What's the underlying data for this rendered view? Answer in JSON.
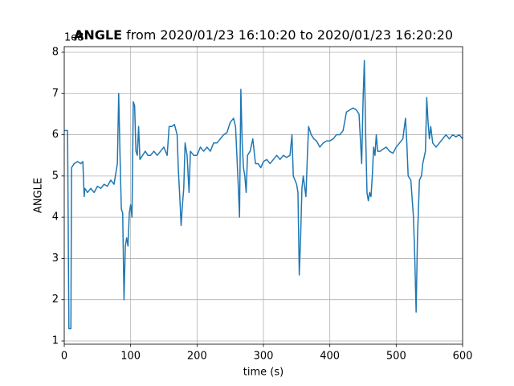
{
  "chart_data": {
    "type": "line",
    "title": {
      "bold": "ANGLE",
      "text": "from 2020/01/23 16:10:20 to 2020/01/23 16:20:20"
    },
    "y_offset_label": "1e8",
    "xlabel": "time (s)",
    "ylabel": "ANGLE",
    "xlim": [
      0,
      600
    ],
    "xticks": [
      0,
      100,
      200,
      300,
      400,
      500,
      600
    ],
    "ylim": [
      0.922,
      8.136
    ],
    "yticks": [
      1,
      2,
      3,
      4,
      5,
      6,
      7,
      8
    ],
    "grid": true,
    "x": [
      0,
      5,
      7,
      10,
      11,
      15,
      20,
      25,
      28,
      30,
      31,
      35,
      40,
      45,
      50,
      55,
      60,
      65,
      70,
      75,
      80,
      82,
      84,
      86,
      88,
      90,
      92,
      94,
      96,
      98,
      100,
      102,
      104,
      106,
      108,
      110,
      112,
      114,
      118,
      122,
      126,
      130,
      135,
      140,
      145,
      150,
      155,
      158,
      162,
      166,
      170,
      172,
      174,
      176,
      178,
      180,
      182,
      185,
      188,
      190,
      195,
      200,
      205,
      210,
      215,
      220,
      225,
      230,
      235,
      240,
      245,
      250,
      255,
      258,
      262,
      264,
      266,
      268,
      270,
      272,
      274,
      276,
      280,
      284,
      288,
      292,
      296,
      300,
      305,
      310,
      315,
      320,
      325,
      330,
      335,
      340,
      343,
      345,
      350,
      352,
      354,
      356,
      358,
      360,
      364,
      366,
      368,
      372,
      376,
      380,
      385,
      390,
      395,
      400,
      405,
      410,
      415,
      420,
      425,
      430,
      435,
      440,
      444,
      446,
      448,
      450,
      452,
      454,
      456,
      458,
      460,
      462,
      464,
      466,
      468,
      470,
      472,
      476,
      480,
      485,
      490,
      495,
      500,
      505,
      510,
      514,
      516,
      518,
      522,
      526,
      528,
      530,
      532,
      535,
      538,
      540,
      544,
      546,
      548,
      550,
      552,
      555,
      560,
      565,
      570,
      575,
      580,
      585,
      590,
      595,
      600
    ],
    "series": [
      {
        "name": "ANGLE",
        "color": "#1f77b4",
        "values": [
          6.1,
          6.1,
          1.3,
          1.3,
          5.2,
          5.3,
          5.35,
          5.3,
          5.35,
          4.5,
          4.7,
          4.6,
          4.7,
          4.6,
          4.75,
          4.7,
          4.8,
          4.75,
          4.9,
          4.8,
          5.3,
          7.0,
          5.5,
          4.2,
          4.1,
          2.0,
          3.3,
          3.5,
          3.3,
          4.1,
          4.3,
          4.0,
          6.8,
          6.7,
          5.6,
          5.5,
          6.2,
          5.4,
          5.5,
          5.6,
          5.5,
          5.5,
          5.6,
          5.5,
          5.6,
          5.7,
          5.5,
          6.2,
          6.2,
          6.25,
          6.0,
          5.1,
          4.5,
          3.8,
          4.3,
          4.7,
          5.8,
          5.5,
          4.6,
          5.6,
          5.5,
          5.5,
          5.7,
          5.6,
          5.7,
          5.6,
          5.8,
          5.8,
          5.9,
          6.0,
          6.05,
          6.3,
          6.4,
          6.2,
          4.8,
          4.0,
          7.1,
          5.8,
          5.2,
          5.0,
          4.6,
          5.5,
          5.6,
          5.9,
          5.3,
          5.3,
          5.2,
          5.35,
          5.4,
          5.3,
          5.4,
          5.5,
          5.4,
          5.5,
          5.45,
          5.5,
          6.0,
          5.0,
          4.8,
          4.6,
          2.6,
          3.5,
          4.7,
          5.0,
          4.5,
          5.4,
          6.2,
          6.0,
          5.9,
          5.85,
          5.7,
          5.8,
          5.85,
          5.85,
          5.9,
          6.0,
          6.0,
          6.1,
          6.55,
          6.6,
          6.65,
          6.6,
          6.5,
          5.9,
          5.3,
          6.8,
          7.8,
          6.0,
          4.6,
          4.4,
          4.6,
          4.5,
          5.0,
          5.7,
          5.5,
          6.0,
          5.6,
          5.6,
          5.65,
          5.7,
          5.6,
          5.55,
          5.7,
          5.8,
          5.9,
          6.4,
          5.8,
          5.0,
          4.9,
          4.0,
          3.0,
          1.7,
          3.5,
          4.9,
          5.0,
          5.3,
          5.6,
          6.9,
          6.3,
          5.9,
          6.2,
          5.8,
          5.7,
          5.8,
          5.9,
          6.0,
          5.9,
          6.0,
          5.95,
          6.0,
          5.9
        ]
      }
    ]
  }
}
